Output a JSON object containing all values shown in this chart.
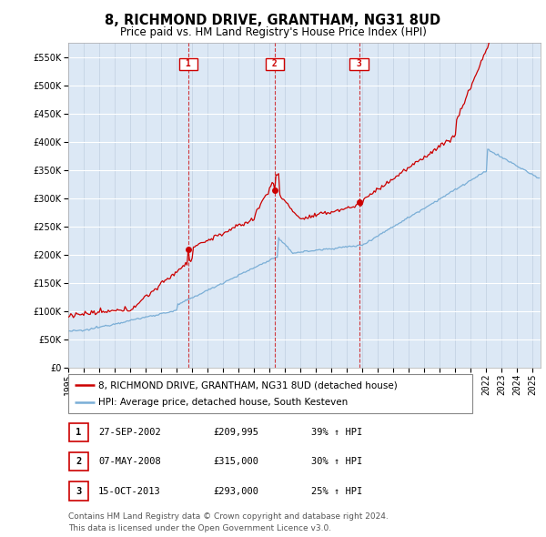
{
  "title": "8, RICHMOND DRIVE, GRANTHAM, NG31 8UD",
  "subtitle": "Price paid vs. HM Land Registry's House Price Index (HPI)",
  "ylabel_ticks": [
    0,
    50000,
    100000,
    150000,
    200000,
    250000,
    300000,
    350000,
    400000,
    450000,
    500000,
    550000
  ],
  "ylim": [
    0,
    575000
  ],
  "xlim_start": 1995.0,
  "xlim_end": 2025.5,
  "red_line_label": "8, RICHMOND DRIVE, GRANTHAM, NG31 8UD (detached house)",
  "blue_line_label": "HPI: Average price, detached house, South Kesteven",
  "sale_points": [
    {
      "num": 1,
      "year": 2002.75,
      "price": 209995,
      "date": "27-SEP-2002",
      "price_str": "£209,995",
      "hpi_str": "39% ↑ HPI"
    },
    {
      "num": 2,
      "year": 2008.35,
      "price": 315000,
      "date": "07-MAY-2008",
      "price_str": "£315,000",
      "hpi_str": "30% ↑ HPI"
    },
    {
      "num": 3,
      "year": 2013.79,
      "price": 293000,
      "date": "15-OCT-2013",
      "price_str": "£293,000",
      "hpi_str": "25% ↑ HPI"
    }
  ],
  "footnote1": "Contains HM Land Registry data © Crown copyright and database right 2024.",
  "footnote2": "This data is licensed under the Open Government Licence v3.0.",
  "bg_color": "#ffffff",
  "plot_bg_color": "#dce8f5",
  "grid_color": "#ffffff",
  "red_color": "#cc0000",
  "blue_color": "#7aaed6",
  "title_fontsize": 10.5,
  "subtitle_fontsize": 8.5,
  "tick_fontsize": 7,
  "legend_fontsize": 7.5,
  "table_fontsize": 7.5,
  "footnote_fontsize": 6.5
}
